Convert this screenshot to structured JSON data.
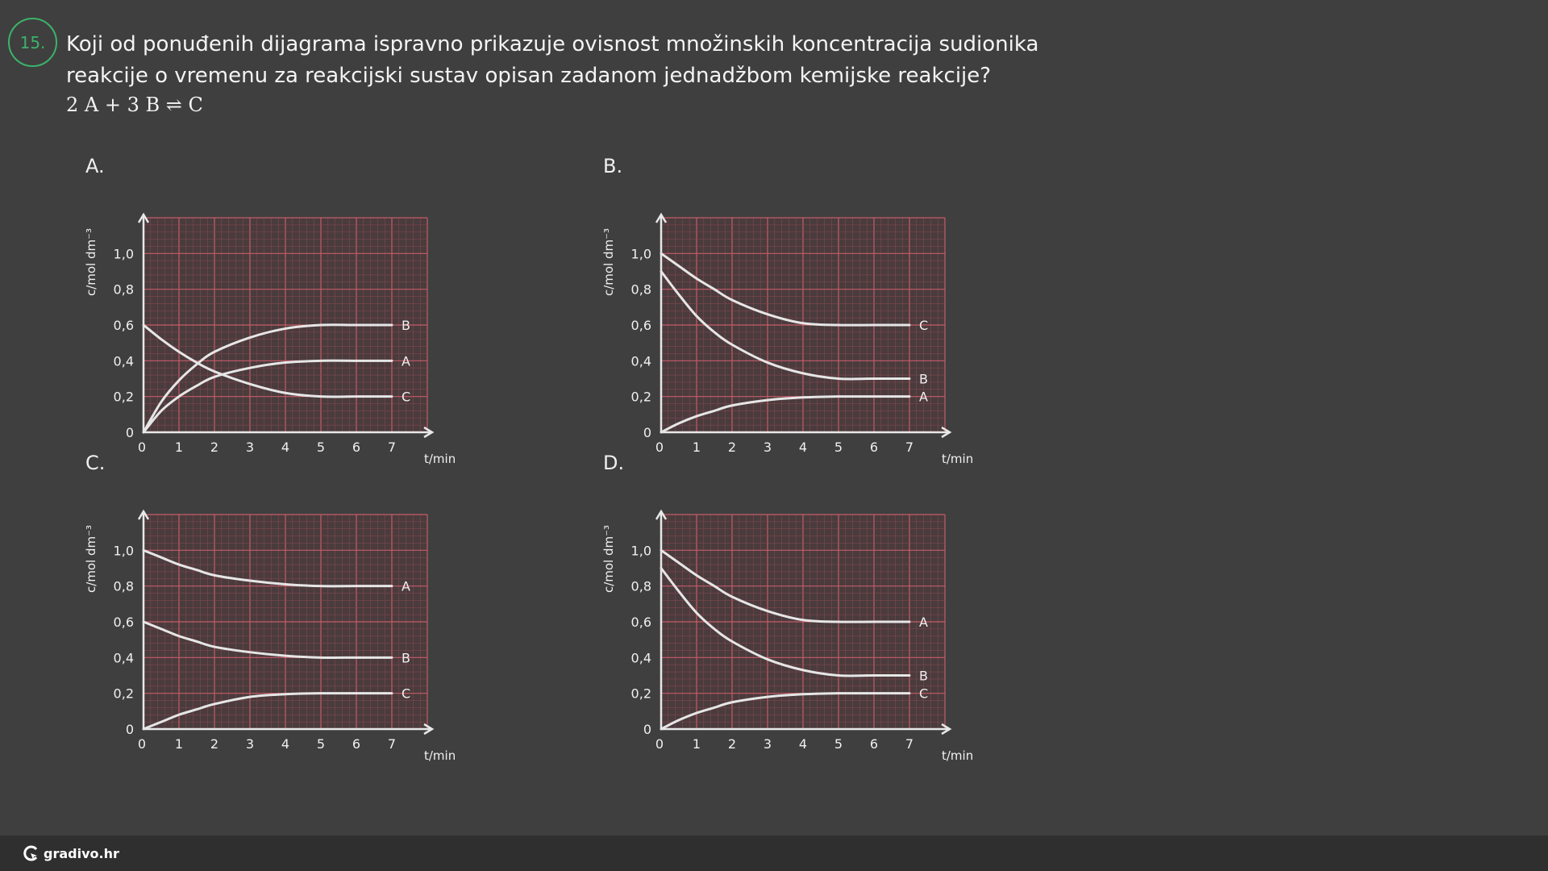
{
  "question": {
    "number": "15.",
    "text": "Koji od ponuđenih dijagrama ispravno prikazuje ovisnost množinskih koncentracija sudionika reakcije o vremenu za reakcijski sustav opisan zadanom jednadžbom kemijske reakcije?",
    "equation": "2 A + 3 B ⇌ C"
  },
  "footer": {
    "brand": "gradivo.hr"
  },
  "chart_data": [
    {
      "type": "line",
      "panel_label": "A.",
      "xlabel": "t/min",
      "ylabel": "c/mol dm⁻³",
      "xlim": [
        0,
        8
      ],
      "ylim": [
        0,
        1.2
      ],
      "x_ticks": [
        "0",
        "1",
        "2",
        "3",
        "4",
        "5",
        "6",
        "7"
      ],
      "y_ticks": [
        "0",
        "0,2",
        "0,4",
        "0,6",
        "0,8",
        "1,0"
      ],
      "series": [
        {
          "name": "B",
          "x": [
            0,
            0.5,
            1,
            1.5,
            2,
            3,
            4,
            5,
            6,
            7
          ],
          "y": [
            0,
            0.17,
            0.29,
            0.38,
            0.45,
            0.53,
            0.58,
            0.6,
            0.6,
            0.6
          ]
        },
        {
          "name": "A",
          "x": [
            0,
            0.5,
            1,
            1.5,
            2,
            3,
            4,
            5,
            6,
            7
          ],
          "y": [
            0,
            0.12,
            0.2,
            0.26,
            0.31,
            0.36,
            0.39,
            0.4,
            0.4,
            0.4
          ]
        },
        {
          "name": "C",
          "x": [
            0,
            0.5,
            1,
            1.5,
            2,
            3,
            4,
            5,
            6,
            7
          ],
          "y": [
            0.6,
            0.52,
            0.45,
            0.39,
            0.34,
            0.27,
            0.22,
            0.2,
            0.2,
            0.2
          ]
        }
      ]
    },
    {
      "type": "line",
      "panel_label": "B.",
      "xlabel": "t/min",
      "ylabel": "c/mol dm⁻³",
      "xlim": [
        0,
        8
      ],
      "ylim": [
        0,
        1.2
      ],
      "x_ticks": [
        "0",
        "1",
        "2",
        "3",
        "4",
        "5",
        "6",
        "7"
      ],
      "y_ticks": [
        "0",
        "0,2",
        "0,4",
        "0,6",
        "0,8",
        "1,0"
      ],
      "series": [
        {
          "name": "C",
          "x": [
            0,
            0.5,
            1,
            1.5,
            2,
            3,
            4,
            5,
            6,
            7
          ],
          "y": [
            1.0,
            0.93,
            0.86,
            0.8,
            0.74,
            0.66,
            0.61,
            0.6,
            0.6,
            0.6
          ]
        },
        {
          "name": "B",
          "x": [
            0,
            0.5,
            1,
            1.5,
            2,
            3,
            4,
            5,
            6,
            7
          ],
          "y": [
            0.9,
            0.77,
            0.65,
            0.56,
            0.49,
            0.39,
            0.33,
            0.3,
            0.3,
            0.3
          ]
        },
        {
          "name": "A",
          "x": [
            0,
            0.5,
            1,
            1.5,
            2,
            3,
            4,
            5,
            6,
            7
          ],
          "y": [
            0,
            0.05,
            0.09,
            0.12,
            0.15,
            0.18,
            0.195,
            0.2,
            0.2,
            0.2
          ]
        }
      ]
    },
    {
      "type": "line",
      "panel_label": "C.",
      "xlabel": "t/min",
      "ylabel": "c/mol dm⁻³",
      "xlim": [
        0,
        8
      ],
      "ylim": [
        0,
        1.2
      ],
      "x_ticks": [
        "0",
        "1",
        "2",
        "3",
        "4",
        "5",
        "6",
        "7"
      ],
      "y_ticks": [
        "0",
        "0,2",
        "0,4",
        "0,6",
        "0,8",
        "1,0"
      ],
      "series": [
        {
          "name": "A",
          "x": [
            0,
            0.5,
            1,
            1.5,
            2,
            3,
            4,
            5,
            6,
            7
          ],
          "y": [
            1.0,
            0.96,
            0.92,
            0.89,
            0.86,
            0.83,
            0.81,
            0.8,
            0.8,
            0.8
          ]
        },
        {
          "name": "B",
          "x": [
            0,
            0.5,
            1,
            1.5,
            2,
            3,
            4,
            5,
            6,
            7
          ],
          "y": [
            0.6,
            0.56,
            0.52,
            0.49,
            0.46,
            0.43,
            0.41,
            0.4,
            0.4,
            0.4
          ]
        },
        {
          "name": "C",
          "x": [
            0,
            0.5,
            1,
            1.5,
            2,
            3,
            4,
            5,
            6,
            7
          ],
          "y": [
            0,
            0.04,
            0.08,
            0.11,
            0.14,
            0.18,
            0.195,
            0.2,
            0.2,
            0.2
          ]
        }
      ]
    },
    {
      "type": "line",
      "panel_label": "D.",
      "xlabel": "t/min",
      "ylabel": "c/mol dm⁻³",
      "xlim": [
        0,
        8
      ],
      "ylim": [
        0,
        1.2
      ],
      "x_ticks": [
        "0",
        "1",
        "2",
        "3",
        "4",
        "5",
        "6",
        "7"
      ],
      "y_ticks": [
        "0",
        "0,2",
        "0,4",
        "0,6",
        "0,8",
        "1,0"
      ],
      "series": [
        {
          "name": "A",
          "x": [
            0,
            0.5,
            1,
            1.5,
            2,
            3,
            4,
            5,
            6,
            7
          ],
          "y": [
            1.0,
            0.93,
            0.86,
            0.8,
            0.74,
            0.66,
            0.61,
            0.6,
            0.6,
            0.6
          ]
        },
        {
          "name": "B",
          "x": [
            0,
            0.5,
            1,
            1.5,
            2,
            3,
            4,
            5,
            6,
            7
          ],
          "y": [
            0.9,
            0.77,
            0.65,
            0.56,
            0.49,
            0.39,
            0.33,
            0.3,
            0.3,
            0.3
          ]
        },
        {
          "name": "C",
          "x": [
            0,
            0.5,
            1,
            1.5,
            2,
            3,
            4,
            5,
            6,
            7
          ],
          "y": [
            0,
            0.05,
            0.09,
            0.12,
            0.15,
            0.18,
            0.195,
            0.2,
            0.2,
            0.2
          ]
        }
      ]
    }
  ]
}
